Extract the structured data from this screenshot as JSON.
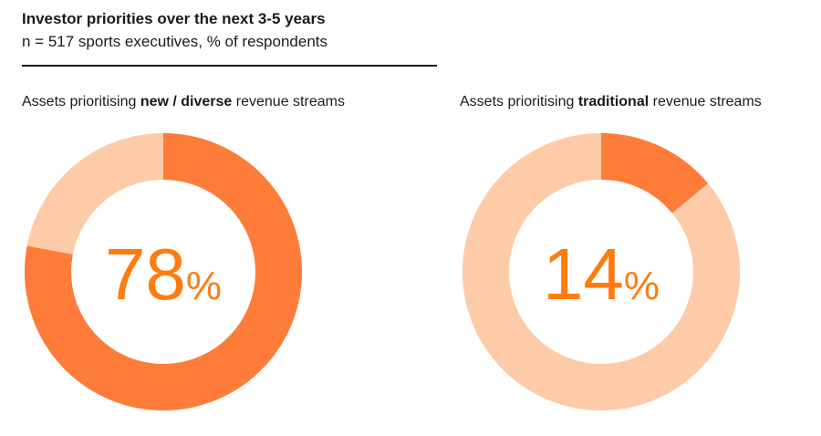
{
  "header": {
    "title": "Investor priorities over the next 3-5 years",
    "subtitle": "n = 517 sports executives, % of respondents"
  },
  "colors": {
    "primary": "#fe7c39",
    "secondary": "#fdcba7",
    "text": "#fe7c0f"
  },
  "chart_data": [
    {
      "type": "pie",
      "variant": "donut",
      "label_parts": [
        "Assets prioritising ",
        "new / diverse",
        " revenue streams"
      ],
      "value": 78,
      "value_text": "78",
      "unit": "%"
    },
    {
      "type": "pie",
      "variant": "donut",
      "label_parts": [
        "Assets prioritising ",
        "traditional",
        " revenue streams"
      ],
      "value": 14,
      "value_text": "14",
      "unit": "%"
    }
  ]
}
